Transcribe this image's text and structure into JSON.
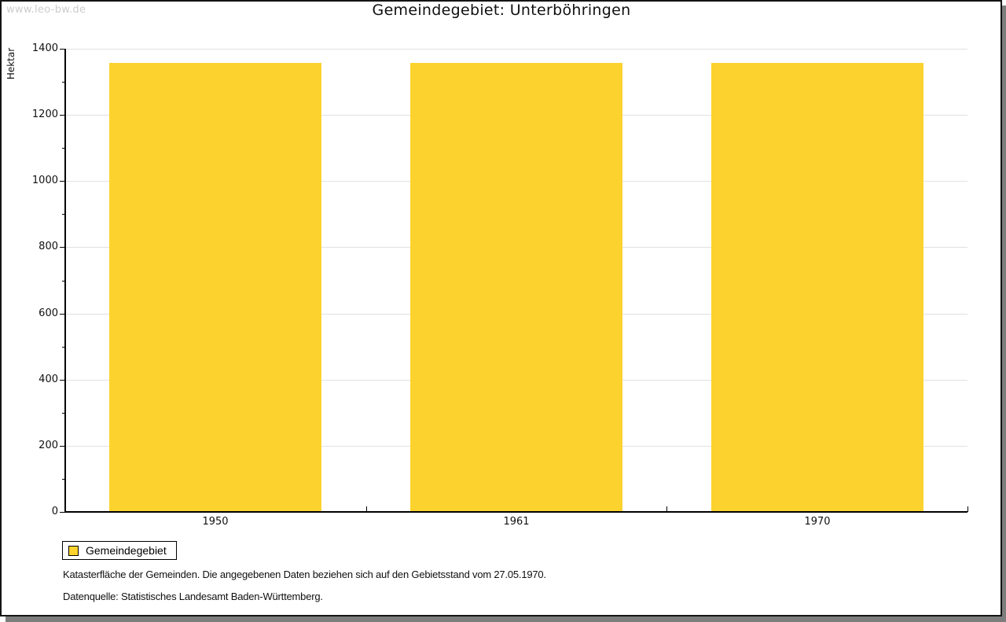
{
  "watermark": "www.leo-bw.de",
  "chart_data": {
    "type": "bar",
    "title": "Gemeindegebiet: Unterböhringen",
    "categories": [
      "1950",
      "1961",
      "1970"
    ],
    "series": [
      {
        "name": "Gemeindegebiet",
        "values": [
          1357,
          1357,
          1357
        ]
      }
    ],
    "xlabel": "",
    "ylabel": "Hektar",
    "ylim": [
      0,
      1400
    ],
    "ytick_step": 200,
    "yminor_step": 100,
    "ytick_labels": [
      "0",
      "200",
      "400",
      "600",
      "800",
      "1000",
      "1200",
      "1400"
    ],
    "grid": true,
    "legend_position": "bottom-left",
    "unit": "Hektar"
  },
  "legend": {
    "label": "Gemeindegebiet"
  },
  "footnotes": {
    "line1": "Katasterfläche der Gemeinden. Die angegebenen Daten beziehen sich auf den Gebietsstand vom 27.05.1970.",
    "line2": "Datenquelle: Statistisches Landesamt Baden-Württemberg."
  },
  "colors": {
    "bar": "#FCD32E",
    "grid": "#E1E1E1",
    "axis": "#000000",
    "watermark": "#CCCCCC",
    "frame_border": "#141414",
    "frame_shadow": "#7D7D7D"
  }
}
